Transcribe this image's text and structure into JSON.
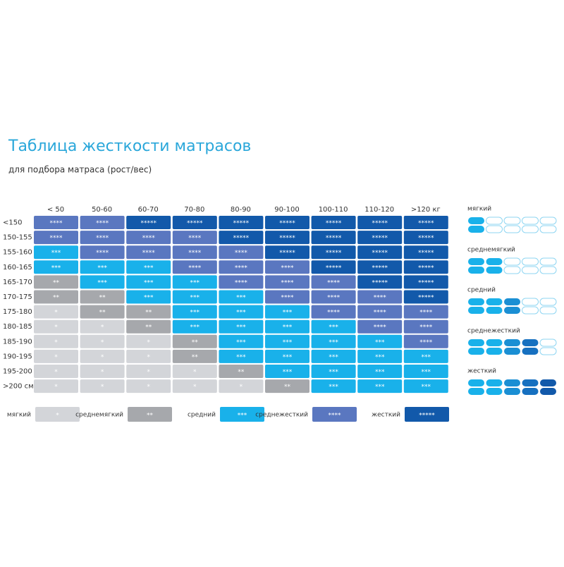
{
  "header": {
    "title": "Таблица жесткости матрасов",
    "subtitle": "для подбора матраса (рост/вес)"
  },
  "table": {
    "columns": [
      "< 50",
      "50-60",
      "60-70",
      "70-80",
      "80-90",
      "90-100",
      "100-110",
      "110-120",
      ">120 кг"
    ],
    "rows": [
      {
        "label": "<150",
        "cells": [
          "****",
          "****",
          "*****",
          "*****",
          "*****",
          "*****",
          "*****",
          "*****",
          "*****"
        ]
      },
      {
        "label": "150-155",
        "cells": [
          "****",
          "****",
          "****",
          "****",
          "*****",
          "*****",
          "*****",
          "*****",
          "*****"
        ]
      },
      {
        "label": "155-160",
        "cells": [
          "***",
          "****",
          "****",
          "****",
          "****",
          "*****",
          "*****",
          "*****",
          "*****"
        ]
      },
      {
        "label": "160-165",
        "cells": [
          "***",
          "***",
          "***",
          "****",
          "****",
          "****",
          "*****",
          "*****",
          "*****"
        ]
      },
      {
        "label": "165-170",
        "cells": [
          "**",
          "***",
          "***",
          "***",
          "****",
          "****",
          "****",
          "*****",
          "*****"
        ]
      },
      {
        "label": "170-175",
        "cells": [
          "**",
          "**",
          "***",
          "***",
          "***",
          "****",
          "****",
          "****",
          "*****"
        ]
      },
      {
        "label": "175-180",
        "cells": [
          "*",
          "**",
          "**",
          "***",
          "***",
          "***",
          "****",
          "****",
          "****"
        ]
      },
      {
        "label": "180-185",
        "cells": [
          "*",
          "*",
          "**",
          "***",
          "***",
          "***",
          "***",
          "****",
          "****"
        ]
      },
      {
        "label": "185-190",
        "cells": [
          "*",
          "*",
          "*",
          "**",
          "***",
          "***",
          "***",
          "***",
          "****"
        ]
      },
      {
        "label": "190-195",
        "cells": [
          "*",
          "*",
          "*",
          "**",
          "***",
          "***",
          "***",
          "***",
          "***"
        ]
      },
      {
        "label": "195-200",
        "cells": [
          "*",
          "*",
          "*",
          "*",
          "**",
          "***",
          "***",
          "***",
          "***"
        ]
      },
      {
        "label": ">200 см",
        "cells": [
          "*",
          "*",
          "*",
          "*",
          "*",
          "**",
          "***",
          "***",
          "***"
        ]
      }
    ]
  },
  "legend": [
    {
      "label": "мягкий",
      "stars": "*",
      "color": "#d3d5d9"
    },
    {
      "label": "среднемягкий",
      "stars": "**",
      "color": "#a6a8ac"
    },
    {
      "label": "средний",
      "stars": "***",
      "color": "#19b1ea"
    },
    {
      "label": "среднежесткий",
      "stars": "****",
      "color": "#5a77c0"
    },
    {
      "label": "жесткий",
      "stars": "*****",
      "color": "#1259aa"
    }
  ],
  "side_labels": [
    "мягкий",
    "среднемягкий",
    "средний",
    "среднежесткий",
    "жесткий"
  ]
}
